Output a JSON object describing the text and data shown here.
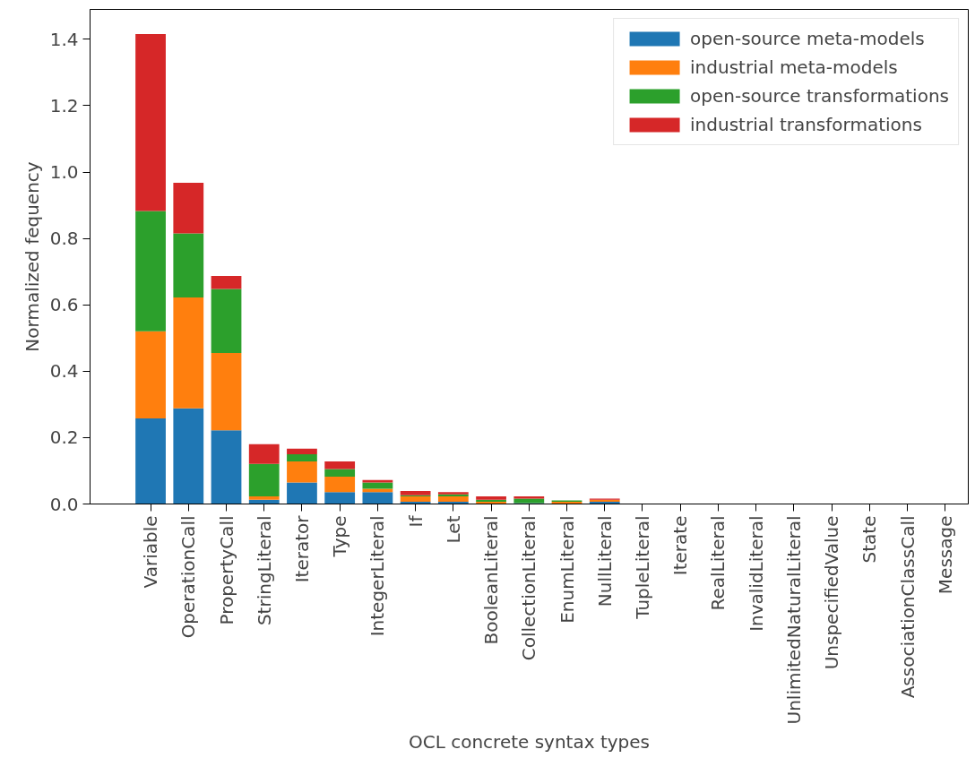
{
  "chart_data": {
    "type": "bar",
    "stacked": true,
    "xlabel": "OCL concrete syntax types",
    "ylabel": "Normalized fequency",
    "categories": [
      "Variable",
      "OperationCall",
      "PropertyCall",
      "StringLiteral",
      "Iterator",
      "Type",
      "IntegerLiteral",
      "If",
      "Let",
      "BooleanLiteral",
      "CollectionLiteral",
      "EnumLiteral",
      "NullLiteral",
      "TupleLiteral",
      "Iterate",
      "RealLiteral",
      "InvalidLiteral",
      "UnlimitedNaturalLiteral",
      "UnspecifiedValue",
      "State",
      "AssociationClassCall",
      "Message"
    ],
    "series": [
      {
        "name": "open-source meta-models",
        "color": "#1f77b4",
        "values": [
          0.258,
          0.288,
          0.222,
          0.013,
          0.065,
          0.036,
          0.036,
          0.007,
          0.007,
          null,
          0.003,
          null,
          0.007,
          0,
          0,
          0,
          0,
          0,
          0,
          0,
          0,
          0
        ]
      },
      {
        "name": "industrial meta-models",
        "color": "#ff7f0e",
        "values": [
          0.262,
          0.334,
          0.233,
          0.01,
          0.063,
          0.046,
          0.01,
          0.016,
          0.016,
          0.007,
          0,
          0.007,
          0.006,
          0,
          0,
          0,
          0,
          0,
          0,
          0,
          0,
          0
        ]
      },
      {
        "name": "open-source transformations",
        "color": "#2ca02c",
        "values": [
          0.363,
          0.193,
          0.193,
          0.098,
          0.022,
          0.023,
          0.019,
          0.003,
          0.006,
          0.006,
          0.013,
          0.004,
          0,
          0,
          0,
          0,
          0,
          0,
          0,
          0,
          0,
          0
        ]
      },
      {
        "name": "industrial transformations",
        "color": "#d62728",
        "values": [
          0.533,
          0.153,
          0.039,
          0.059,
          0.017,
          0.023,
          0.007,
          0.013,
          0.007,
          0.01,
          0.007,
          null,
          0.003,
          0,
          0,
          0,
          0,
          0,
          0,
          0,
          0,
          0
        ]
      }
    ],
    "ylim": [
      0,
      1.49
    ],
    "yticks": [
      {
        "value": 0,
        "label": "0.0"
      },
      {
        "value": 0.2,
        "label": "0.2"
      },
      {
        "value": 0.4,
        "label": "0.4"
      },
      {
        "value": 0.6,
        "label": "0.6"
      },
      {
        "value": 0.8,
        "label": "0.8"
      },
      {
        "value": 1.0,
        "label": "1.0"
      },
      {
        "value": 1.2,
        "label": "1.2"
      },
      {
        "value": 1.4,
        "label": "1.4"
      }
    ],
    "grid": false,
    "legend": "top right"
  }
}
